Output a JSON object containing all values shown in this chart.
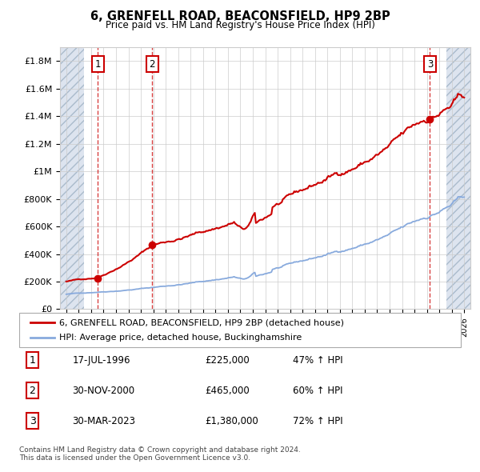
{
  "title": "6, GRENFELL ROAD, BEACONSFIELD, HP9 2BP",
  "subtitle": "Price paid vs. HM Land Registry's House Price Index (HPI)",
  "ylabel_ticks": [
    "£0",
    "£200K",
    "£400K",
    "£600K",
    "£800K",
    "£1M",
    "£1.2M",
    "£1.4M",
    "£1.6M",
    "£1.8M"
  ],
  "ytick_values": [
    0,
    200000,
    400000,
    600000,
    800000,
    1000000,
    1200000,
    1400000,
    1600000,
    1800000
  ],
  "ylim": [
    0,
    1900000
  ],
  "xlim_start": 1993.5,
  "xlim_end": 2026.5,
  "hatch_left_end": 1995.42,
  "hatch_right_start": 2024.58,
  "transactions": [
    {
      "num": 1,
      "date": "17-JUL-1996",
      "price": 225000,
      "year": 1996.54,
      "pct": "47% ↑ HPI"
    },
    {
      "num": 2,
      "date": "30-NOV-2000",
      "price": 465000,
      "year": 2000.92,
      "pct": "60% ↑ HPI"
    },
    {
      "num": 3,
      "date": "30-MAR-2023",
      "price": 1380000,
      "year": 2023.25,
      "pct": "72% ↑ HPI"
    }
  ],
  "legend_house": "6, GRENFELL ROAD, BEACONSFIELD, HP9 2BP (detached house)",
  "legend_hpi": "HPI: Average price, detached house, Buckinghamshire",
  "footer1": "Contains HM Land Registry data © Crown copyright and database right 2024.",
  "footer2": "This data is licensed under the Open Government Licence v3.0.",
  "house_color": "#cc0000",
  "hpi_color": "#88aadd",
  "hatch_facecolor": "#dde4ef",
  "bg_color": "#ffffff",
  "grid_color": "#cccccc"
}
